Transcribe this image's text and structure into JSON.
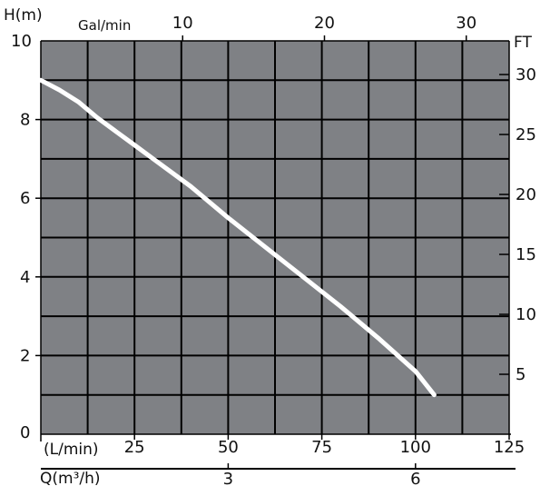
{
  "chart_data": {
    "type": "line",
    "x_unit_label": "(L/min)",
    "x_ticks": [
      25,
      50,
      75,
      100,
      125
    ],
    "xlim": [
      0,
      125
    ],
    "y_label": "H(m)",
    "y_ticks": [
      0,
      2,
      4,
      6,
      8,
      10
    ],
    "ylim": [
      0,
      10
    ],
    "top_axis_label": "Gal/min",
    "top_ticks": [
      10,
      20,
      30
    ],
    "right_axis_label": "FT",
    "right_ticks": [
      5,
      10,
      15,
      20,
      25,
      30
    ],
    "q_axis_label": "Q(m³/h)",
    "q_ticks": [
      3,
      6
    ],
    "series": [
      {
        "x": [
          0,
          5,
          10,
          15,
          20,
          25,
          30,
          40,
          50,
          60,
          70,
          80,
          90,
          100,
          105
        ],
        "y": [
          9.0,
          8.75,
          8.45,
          8.05,
          7.7,
          7.35,
          7.0,
          6.3,
          5.5,
          4.75,
          4.0,
          3.25,
          2.45,
          1.6,
          1.0
        ]
      }
    ],
    "grid": true,
    "colors": {
      "plot_background": "#7f8185",
      "grid_lines": "#000000",
      "curve": "#ffffff"
    }
  }
}
